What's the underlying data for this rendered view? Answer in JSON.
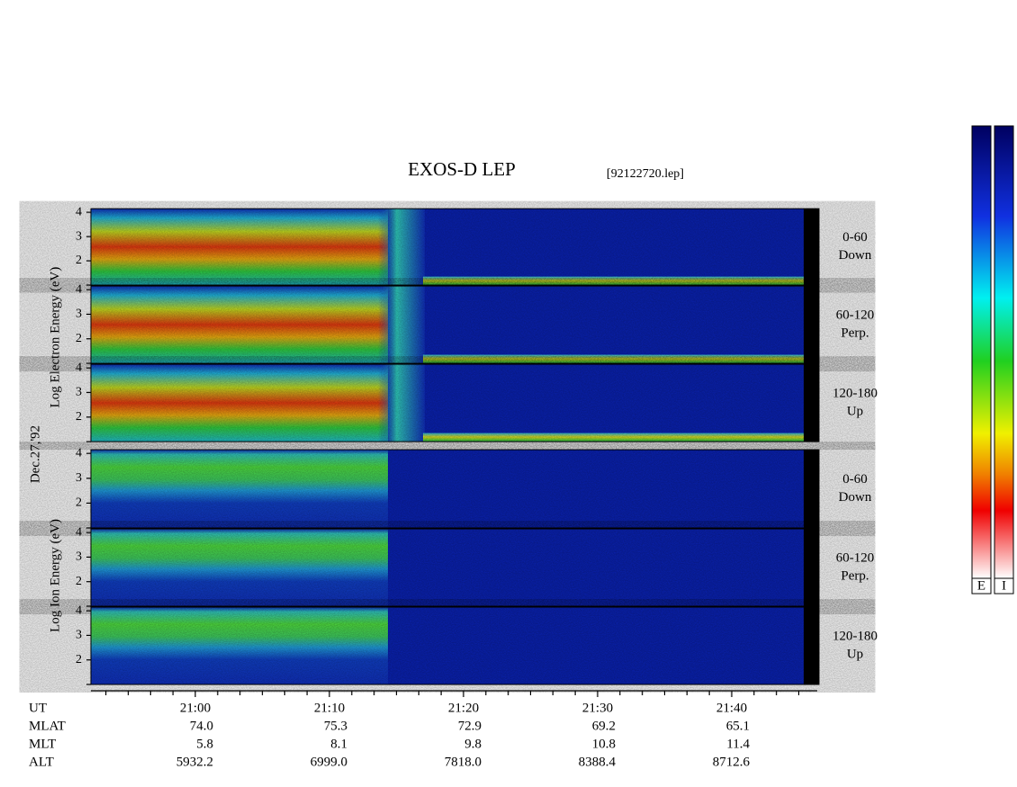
{
  "title": "EXOS-D LEP",
  "file": "[92122720.lep]",
  "date": "Dec.27,'92",
  "energy_axis": {
    "ylim": [
      1,
      4.15
    ],
    "yticks": [
      2,
      3,
      4
    ]
  },
  "electron": {
    "axis_label": "Log Electron Energy (eV)",
    "panels": [
      {
        "pitch": "0-60",
        "direction": "Down"
      },
      {
        "pitch": "60-120",
        "direction": "Perp."
      },
      {
        "pitch": "120-180",
        "direction": "Up"
      }
    ]
  },
  "ion": {
    "axis_label": "Log Ion Energy (eV)",
    "panels": [
      {
        "pitch": "0-60",
        "direction": "Down"
      },
      {
        "pitch": "60-120",
        "direction": "Perp."
      },
      {
        "pitch": "120-180",
        "direction": "Up"
      }
    ]
  },
  "rows": [
    {
      "name": "UT",
      "values": [
        "21:00",
        "21:10",
        "21:20",
        "21:30",
        "21:40"
      ]
    },
    {
      "name": "MLAT",
      "values": [
        "74.0",
        "75.3",
        "72.9",
        "69.2",
        "65.1"
      ]
    },
    {
      "name": "MLT",
      "values": [
        "5.8",
        "8.1",
        "9.8",
        "10.8",
        "11.4"
      ]
    },
    {
      "name": "ALT",
      "values": [
        "5932.2",
        "6999.0",
        "7818.0",
        "8388.4",
        "8712.6"
      ]
    }
  ],
  "colorbars": [
    "E",
    "I"
  ]
}
